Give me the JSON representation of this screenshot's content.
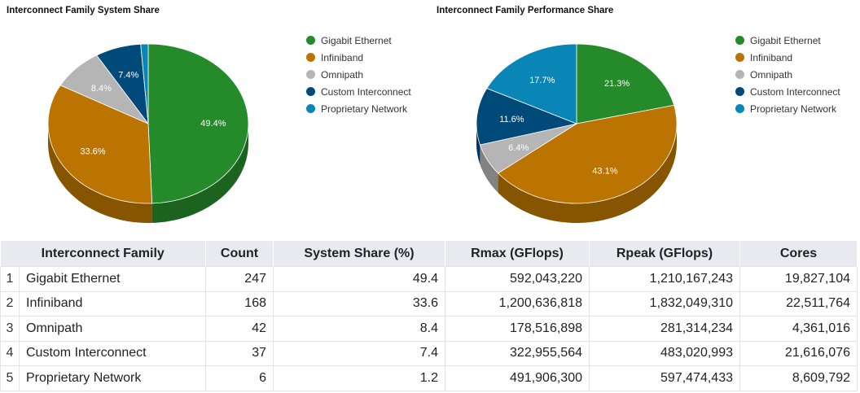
{
  "charts": [
    {
      "id": "system",
      "title": "Interconnect Family System Share",
      "type": "pie",
      "labels": [
        "49.4%",
        "33.6%",
        "8.4%",
        "7.4%",
        "1.2%"
      ]
    },
    {
      "id": "performance",
      "title": "Interconnect Family Performance Share",
      "type": "pie",
      "labels": [
        "21.3%",
        "43.1%",
        "6.4%",
        "11.6%",
        "17.7%"
      ]
    }
  ],
  "chart_data": [
    {
      "type": "pie",
      "title": "Interconnect Family System Share",
      "categories": [
        "Gigabit Ethernet",
        "Infiniband",
        "Omnipath",
        "Custom Interconnect",
        "Proprietary Network"
      ],
      "values": [
        49.4,
        33.6,
        8.4,
        7.4,
        1.2
      ],
      "colors": [
        "#258a2a",
        "#bb7400",
        "#b5b5b5",
        "#004a7a",
        "#0a86b6"
      ],
      "legend": "right"
    },
    {
      "type": "pie",
      "title": "Interconnect Family Performance Share",
      "categories": [
        "Gigabit Ethernet",
        "Infiniband",
        "Omnipath",
        "Custom Interconnect",
        "Proprietary Network"
      ],
      "values": [
        21.3,
        43.1,
        6.4,
        11.6,
        17.7
      ],
      "colors": [
        "#258a2a",
        "#bb7400",
        "#b5b5b5",
        "#004a7a",
        "#0a86b6"
      ],
      "legend": "right"
    },
    {
      "type": "table",
      "columns": [
        "Interconnect Family",
        "Count",
        "System Share (%)",
        "Rmax (GFlops)",
        "Rpeak (GFlops)",
        "Cores"
      ],
      "rows": [
        {
          "idx": "1",
          "family": "Gigabit Ethernet",
          "count": "247",
          "share": "49.4",
          "rmax": "592,043,220",
          "rpeak": "1,210,167,243",
          "cores": "19,827,104"
        },
        {
          "idx": "2",
          "family": "Infiniband",
          "count": "168",
          "share": "33.6",
          "rmax": "1,200,636,818",
          "rpeak": "1,832,049,310",
          "cores": "22,511,764"
        },
        {
          "idx": "3",
          "family": "Omnipath",
          "count": "42",
          "share": "8.4",
          "rmax": "178,516,898",
          "rpeak": "281,314,234",
          "cores": "4,361,016"
        },
        {
          "idx": "4",
          "family": "Custom Interconnect",
          "count": "37",
          "share": "7.4",
          "rmax": "322,955,564",
          "rpeak": "483,020,993",
          "cores": "21,616,076"
        },
        {
          "idx": "5",
          "family": "Proprietary Network",
          "count": "6",
          "share": "1.2",
          "rmax": "491,906,300",
          "rpeak": "597,474,433",
          "cores": "8,609,792"
        }
      ]
    }
  ],
  "legend": {
    "items": [
      {
        "label": "Gigabit Ethernet",
        "color": "#258a2a"
      },
      {
        "label": "Infiniband",
        "color": "#bb7400"
      },
      {
        "label": "Omnipath",
        "color": "#b5b5b5"
      },
      {
        "label": "Custom Interconnect",
        "color": "#004a7a"
      },
      {
        "label": "Proprietary Network",
        "color": "#0a86b6"
      }
    ]
  }
}
